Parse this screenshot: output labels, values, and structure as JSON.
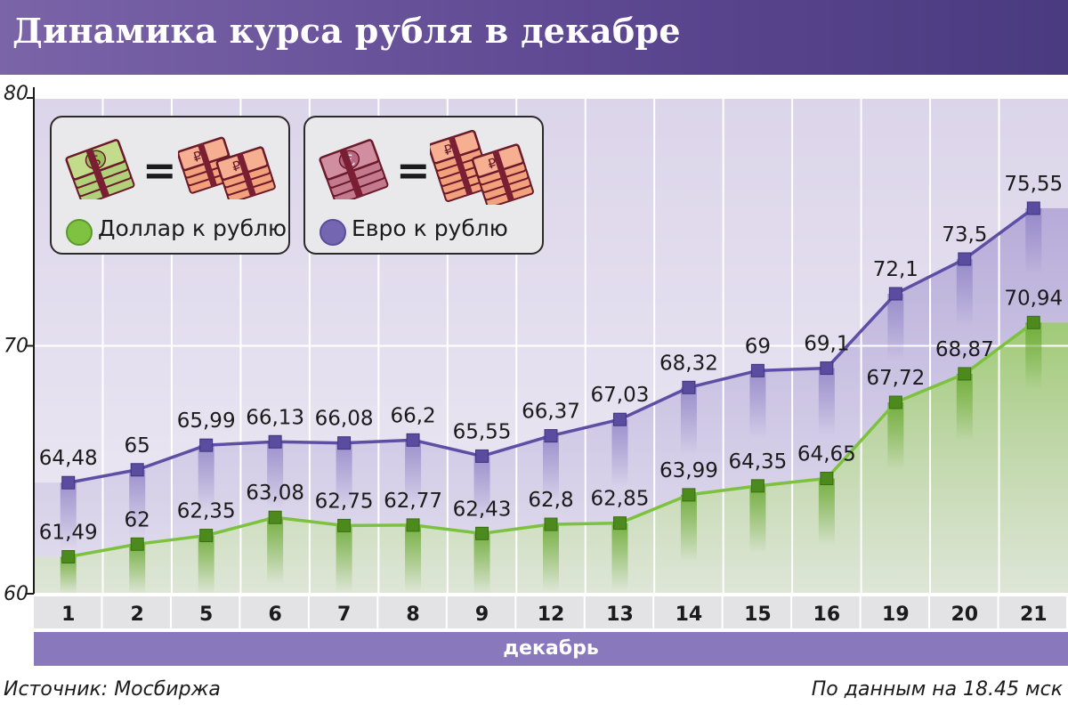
{
  "title": "Динамика курса рубля в декабре",
  "legend": {
    "usd_label": "Доллар к рублю",
    "eur_label": "Евро к рублю",
    "equals": "=",
    "usd_color": "#7fc241",
    "eur_color": "#7566b2"
  },
  "month_label": "декабрь",
  "source": "Источник: Мосбиржа",
  "as_of": "По данным на 18.45 мск",
  "chart_data": {
    "type": "line",
    "categories": [
      "1",
      "2",
      "5",
      "6",
      "7",
      "8",
      "9",
      "12",
      "13",
      "14",
      "15",
      "16",
      "19",
      "20",
      "21"
    ],
    "ylim": [
      60,
      80
    ],
    "yticks": [
      "60",
      "70",
      "80"
    ],
    "grid": true,
    "series": [
      {
        "name": "Евро к рублю",
        "color": "#5a4c9e",
        "values": [
          64.48,
          65,
          65.99,
          66.13,
          66.08,
          66.2,
          65.55,
          66.37,
          67.03,
          68.32,
          69,
          69.1,
          72.1,
          73.5,
          75.55
        ],
        "labels": [
          "64,48",
          "65",
          "65,99",
          "66,13",
          "66,08",
          "66,2",
          "65,55",
          "66,37",
          "67,03",
          "68,32",
          "69",
          "69,1",
          "72,1",
          "73,5",
          "75,55"
        ]
      },
      {
        "name": "Доллар к рублю",
        "color": "#4c8a1e",
        "values": [
          61.49,
          62,
          62.35,
          63.08,
          62.75,
          62.77,
          62.43,
          62.8,
          62.85,
          63.99,
          64.35,
          64.65,
          67.72,
          68.87,
          70.94
        ],
        "labels": [
          "61,49",
          "62",
          "62,35",
          "63,08",
          "62,75",
          "62,77",
          "62,43",
          "62,8",
          "62,85",
          "63,99",
          "64,35",
          "64,65",
          "67,72",
          "68,87",
          "70,94"
        ]
      }
    ]
  }
}
